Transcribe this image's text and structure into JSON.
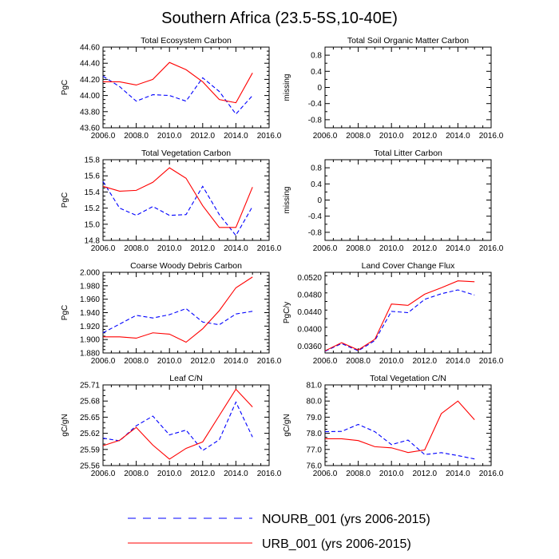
{
  "figure_title": "Southern Africa (23.5-5S,10-40E)",
  "colors": {
    "nourb": "#0000ff",
    "urb": "#ff0000",
    "axis": "#000000"
  },
  "legend": {
    "entries": [
      {
        "label": "NOURB_001 (yrs 2006-2015)",
        "style": "dashed",
        "color": "#0000ff"
      },
      {
        "label": "URB_001 (yrs 2006-2015)",
        "style": "solid",
        "color": "#ff0000"
      }
    ]
  },
  "chart_data": [
    {
      "type": "line",
      "title": "Total Ecosystem Carbon",
      "ylabel": "PgC",
      "xlim": [
        2006,
        2016
      ],
      "xticks": [
        "2006.0",
        "2008.0",
        "2010.0",
        "2012.0",
        "2014.0",
        "2016.0"
      ],
      "ylim": [
        43.6,
        44.6
      ],
      "yticks": [
        "43.60",
        "43.80",
        "44.00",
        "44.20",
        "44.40",
        "44.60"
      ],
      "x": [
        2006,
        2007,
        2008,
        2009,
        2010,
        2011,
        2012,
        2013,
        2014,
        2015
      ],
      "series": [
        {
          "name": "NOURB_001 (yrs 2006-2015)",
          "values": [
            44.24,
            44.11,
            43.93,
            44.01,
            44.0,
            43.93,
            44.22,
            44.05,
            43.77,
            44.0
          ]
        },
        {
          "name": "URB_001 (yrs 2006-2015)",
          "values": [
            44.17,
            44.17,
            44.13,
            44.2,
            44.41,
            44.32,
            44.17,
            43.95,
            43.91,
            44.28
          ]
        }
      ]
    },
    {
      "type": "line",
      "title": "Total Soil Organic Matter Carbon",
      "ylabel": "missing",
      "xlim": [
        2006,
        2016
      ],
      "xticks": [
        "2006.0",
        "2008.0",
        "2010.0",
        "2012.0",
        "2014.0",
        "2016.0"
      ],
      "ylim": [
        -1,
        1
      ],
      "yticks": [
        "-0.8",
        "-0.4",
        "0",
        "0.4",
        "0.8"
      ],
      "ytick_values": [
        -0.8,
        -0.4,
        0,
        0.4,
        0.8
      ],
      "minor_step": 0.2,
      "x": [],
      "series": []
    },
    {
      "type": "line",
      "title": "Total Vegetation Carbon",
      "ylabel": "PgC",
      "xlim": [
        2006,
        2016
      ],
      "xticks": [
        "2006.0",
        "2008.0",
        "2010.0",
        "2012.0",
        "2014.0",
        "2016.0"
      ],
      "ylim": [
        14.8,
        15.8
      ],
      "yticks": [
        "14.8",
        "15.0",
        "15.2",
        "15.4",
        "15.6",
        "15.8"
      ],
      "x": [
        2006,
        2007,
        2008,
        2009,
        2010,
        2011,
        2012,
        2013,
        2014,
        2015
      ],
      "series": [
        {
          "name": "NOURB_001 (yrs 2006-2015)",
          "values": [
            15.53,
            15.2,
            15.11,
            15.22,
            15.11,
            15.12,
            15.47,
            15.12,
            14.86,
            15.22
          ]
        },
        {
          "name": "URB_001 (yrs 2006-2015)",
          "values": [
            15.47,
            15.41,
            15.42,
            15.52,
            15.7,
            15.57,
            15.23,
            14.96,
            14.96,
            15.46
          ]
        }
      ]
    },
    {
      "type": "line",
      "title": "Total Litter Carbon",
      "ylabel": "missing",
      "xlim": [
        2006,
        2016
      ],
      "xticks": [
        "2006.0",
        "2008.0",
        "2010.0",
        "2012.0",
        "2014.0",
        "2016.0"
      ],
      "ylim": [
        -1,
        1
      ],
      "yticks": [
        "-0.8",
        "-0.4",
        "0",
        "0.4",
        "0.8"
      ],
      "ytick_values": [
        -0.8,
        -0.4,
        0,
        0.4,
        0.8
      ],
      "minor_step": 0.2,
      "x": [],
      "series": []
    },
    {
      "type": "line",
      "title": "Coarse Woody Debris Carbon",
      "ylabel": "PgC",
      "xlim": [
        2006,
        2016
      ],
      "xticks": [
        "2006.0",
        "2008.0",
        "2010.0",
        "2012.0",
        "2014.0",
        "2016.0"
      ],
      "ylim": [
        1.88,
        2.0
      ],
      "yticks": [
        "1.880",
        "1.900",
        "1.920",
        "1.940",
        "1.960",
        "1.980",
        "2.000"
      ],
      "x": [
        2006,
        2007,
        2008,
        2009,
        2010,
        2011,
        2012,
        2013,
        2014,
        2015
      ],
      "series": [
        {
          "name": "NOURB_001 (yrs 2006-2015)",
          "values": [
            1.91,
            1.923,
            1.936,
            1.932,
            1.937,
            1.946,
            1.926,
            1.922,
            1.938,
            1.942
          ]
        },
        {
          "name": "URB_001 (yrs 2006-2015)",
          "values": [
            1.904,
            1.904,
            1.902,
            1.91,
            1.908,
            1.896,
            1.916,
            1.943,
            1.977,
            1.993
          ]
        }
      ]
    },
    {
      "type": "line",
      "title": "Land Cover Change Flux",
      "ylabel": "PgC/y",
      "xlim": [
        2006,
        2016
      ],
      "xticks": [
        "2006.0",
        "2008.0",
        "2010.0",
        "2012.0",
        "2014.0",
        "2016.0"
      ],
      "ylim": [
        0.0344,
        0.0532
      ],
      "yticks": [
        "0.0360",
        "0.0400",
        "0.0440",
        "0.0480",
        "0.0520"
      ],
      "ytick_values": [
        0.036,
        0.04,
        0.044,
        0.048,
        0.052
      ],
      "minor_step": 0.002,
      "x": [
        2006,
        2007,
        2008,
        2009,
        2010,
        2011,
        2012,
        2013,
        2014,
        2015
      ],
      "series": [
        {
          "name": "NOURB_001 (yrs 2006-2015)",
          "values": [
            0.0348,
            0.0366,
            0.0349,
            0.0373,
            0.0441,
            0.0438,
            0.0469,
            0.0482,
            0.0491,
            0.0479
          ]
        },
        {
          "name": "URB_001 (yrs 2006-2015)",
          "values": [
            0.0349,
            0.0368,
            0.0351,
            0.0376,
            0.0458,
            0.0455,
            0.0481,
            0.0496,
            0.0512,
            0.051
          ]
        }
      ]
    },
    {
      "type": "line",
      "title": "Leaf C/N",
      "ylabel": "gC/gN",
      "xlim": [
        2006,
        2016
      ],
      "xticks": [
        "2006.0",
        "2008.0",
        "2010.0",
        "2012.0",
        "2014.0",
        "2016.0"
      ],
      "ylim": [
        25.56,
        25.71
      ],
      "yticks": [
        "25.56",
        "25.59",
        "25.62",
        "25.65",
        "25.68",
        "25.71"
      ],
      "ytick_values": [
        25.56,
        25.59,
        25.62,
        25.65,
        25.68,
        25.71
      ],
      "minor_step": 0.01,
      "x": [
        2006,
        2007,
        2008,
        2009,
        2010,
        2011,
        2012,
        2013,
        2014,
        2015
      ],
      "series": [
        {
          "name": "NOURB_001 (yrs 2006-2015)",
          "values": [
            25.611,
            25.606,
            25.634,
            25.652,
            25.617,
            25.626,
            25.588,
            25.608,
            25.678,
            25.613
          ]
        },
        {
          "name": "URB_001 (yrs 2006-2015)",
          "values": [
            25.597,
            25.607,
            25.631,
            25.598,
            25.572,
            25.592,
            25.604,
            25.653,
            25.702,
            25.669
          ]
        }
      ]
    },
    {
      "type": "line",
      "title": "Total Vegetation C/N",
      "ylabel": "gC/gN",
      "xlim": [
        2006,
        2016
      ],
      "xticks": [
        "2006.0",
        "2008.0",
        "2010.0",
        "2012.0",
        "2014.0",
        "2016.0"
      ],
      "ylim": [
        76.0,
        81.0
      ],
      "yticks": [
        "76.0",
        "77.0",
        "78.0",
        "79.0",
        "80.0",
        "81.0"
      ],
      "x": [
        2006,
        2007,
        2008,
        2009,
        2010,
        2011,
        2012,
        2013,
        2014,
        2015
      ],
      "series": [
        {
          "name": "NOURB_001 (yrs 2006-2015)",
          "values": [
            78.1,
            78.12,
            78.55,
            78.1,
            77.3,
            77.58,
            76.68,
            76.8,
            76.62,
            76.41
          ]
        },
        {
          "name": "URB_001 (yrs 2006-2015)",
          "values": [
            77.66,
            77.66,
            77.55,
            77.17,
            77.1,
            76.81,
            76.97,
            79.22,
            80.0,
            78.84
          ]
        }
      ]
    }
  ]
}
